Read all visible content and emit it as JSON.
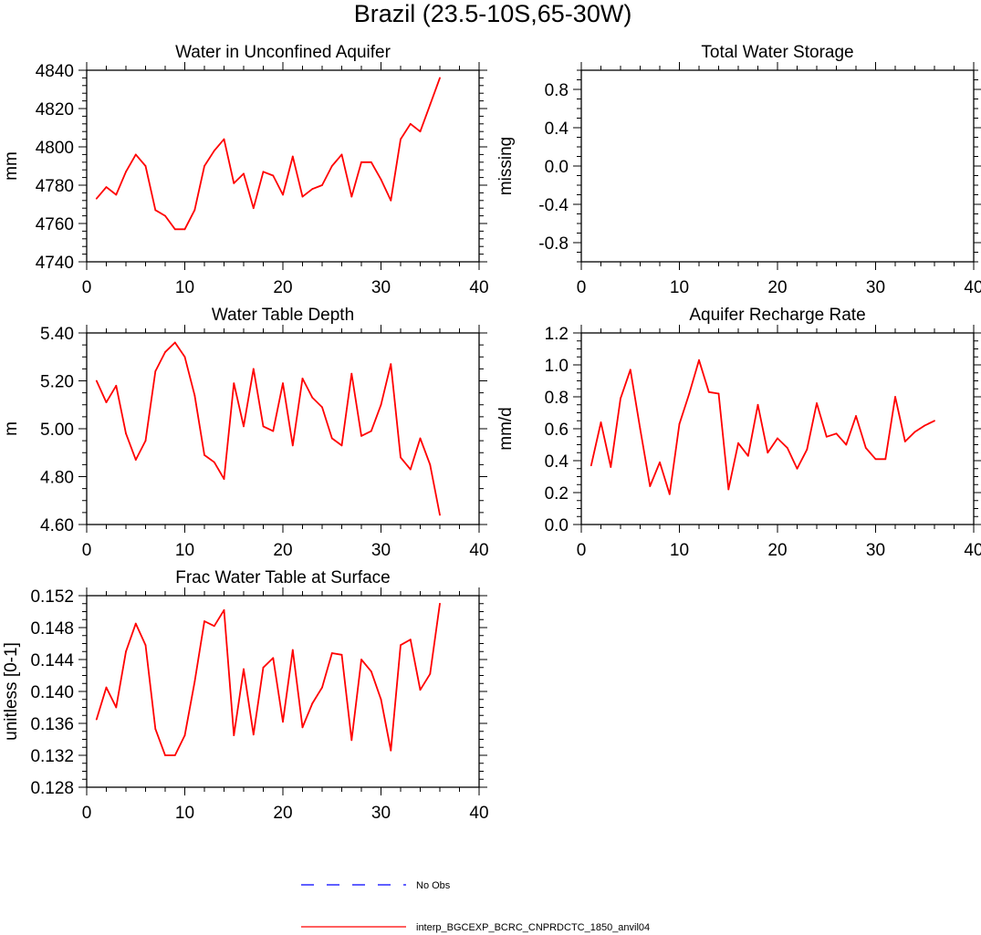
{
  "title": "Brazil (23.5-10S,65-30W)",
  "colors": {
    "model_line": "#ff0000",
    "obs_line": "#0000ff",
    "axis": "#000000"
  },
  "legend": {
    "obs_label": "No Obs",
    "model_label": "interp_BGCEXP_BCRC_CNPRDCTC_1850_anvil04"
  },
  "chart_data": [
    {
      "type": "line",
      "title": "Water in Unconfined Aquifer",
      "ylabel": "mm",
      "xlim": [
        0,
        40
      ],
      "ylim": [
        4740,
        4840
      ],
      "xticks": [
        0,
        10,
        20,
        30,
        40
      ],
      "yticks": [
        4740,
        4760,
        4780,
        4800,
        4820,
        4840
      ],
      "ytick_labels": [
        "4740",
        "4760",
        "4780",
        "4800",
        "4820",
        "4840"
      ],
      "yminor": 5,
      "series": [
        {
          "name": "interp_BGCEXP_BCRC_CNPRDCTC_1850_anvil04",
          "x": [
            1,
            2,
            3,
            4,
            5,
            6,
            7,
            8,
            9,
            10,
            11,
            12,
            13,
            14,
            15,
            16,
            17,
            18,
            19,
            20,
            21,
            22,
            23,
            24,
            25,
            26,
            27,
            28,
            29,
            30,
            31,
            32,
            33,
            34,
            35,
            36
          ],
          "values": [
            4773,
            4779,
            4775,
            4787,
            4796,
            4790,
            4767,
            4764,
            4757,
            4757,
            4767,
            4790,
            4798,
            4804,
            4781,
            4786,
            4768,
            4787,
            4785,
            4775,
            4795,
            4774,
            4778,
            4780,
            4790,
            4796,
            4774,
            4792,
            4792,
            4783,
            4772,
            4804,
            4812,
            4808,
            4822,
            4836
          ]
        }
      ]
    },
    {
      "type": "line",
      "title": "Total Water Storage",
      "ylabel": "missing",
      "xlim": [
        0,
        40
      ],
      "ylim": [
        -1.0,
        1.0
      ],
      "xticks": [
        0,
        10,
        20,
        30,
        40
      ],
      "yticks": [
        -0.8,
        -0.4,
        0.0,
        0.4,
        0.8
      ],
      "ytick_labels": [
        "-0.8",
        "-0.4",
        "0.0",
        "0.4",
        "0.8"
      ],
      "yminor": 4,
      "series": []
    },
    {
      "type": "line",
      "title": "Water Table Depth",
      "ylabel": "m",
      "xlim": [
        0,
        40
      ],
      "ylim": [
        4.6,
        5.4
      ],
      "xticks": [
        0,
        10,
        20,
        30,
        40
      ],
      "yticks": [
        4.6,
        4.8,
        5.0,
        5.2,
        5.4
      ],
      "ytick_labels": [
        "4.60",
        "4.80",
        "5.00",
        "5.20",
        "5.40"
      ],
      "yminor": 4,
      "series": [
        {
          "name": "interp_BGCEXP_BCRC_CNPRDCTC_1850_anvil04",
          "x": [
            1,
            2,
            3,
            4,
            5,
            6,
            7,
            8,
            9,
            10,
            11,
            12,
            13,
            14,
            15,
            16,
            17,
            18,
            19,
            20,
            21,
            22,
            23,
            24,
            25,
            26,
            27,
            28,
            29,
            30,
            31,
            32,
            33,
            34,
            35,
            36
          ],
          "values": [
            5.2,
            5.11,
            5.18,
            4.98,
            4.87,
            4.95,
            5.24,
            5.32,
            5.36,
            5.3,
            5.14,
            4.89,
            4.86,
            4.79,
            5.19,
            5.01,
            5.25,
            5.01,
            4.99,
            5.19,
            4.93,
            5.21,
            5.13,
            5.09,
            4.96,
            4.93,
            5.23,
            4.97,
            4.99,
            5.1,
            5.27,
            4.88,
            4.83,
            4.96,
            4.85,
            4.64
          ]
        }
      ]
    },
    {
      "type": "line",
      "title": "Aquifer Recharge Rate",
      "ylabel": "mm/d",
      "xlim": [
        0,
        40
      ],
      "ylim": [
        0.0,
        1.2
      ],
      "xticks": [
        0,
        10,
        20,
        30,
        40
      ],
      "yticks": [
        0.0,
        0.2,
        0.4,
        0.6,
        0.8,
        1.0,
        1.2
      ],
      "ytick_labels": [
        "0.0",
        "0.2",
        "0.4",
        "0.6",
        "0.8",
        "1.0",
        "1.2"
      ],
      "yminor": 4,
      "series": [
        {
          "name": "interp_BGCEXP_BCRC_CNPRDCTC_1850_anvil04",
          "x": [
            1,
            2,
            3,
            4,
            5,
            6,
            7,
            8,
            9,
            10,
            11,
            12,
            13,
            14,
            15,
            16,
            17,
            18,
            19,
            20,
            21,
            22,
            23,
            24,
            25,
            26,
            27,
            28,
            29,
            30,
            31,
            32,
            33,
            34,
            35,
            36
          ],
          "values": [
            0.37,
            0.64,
            0.36,
            0.79,
            0.97,
            0.6,
            0.24,
            0.39,
            0.19,
            0.63,
            0.82,
            1.03,
            0.83,
            0.82,
            0.22,
            0.51,
            0.43,
            0.75,
            0.45,
            0.54,
            0.48,
            0.35,
            0.47,
            0.76,
            0.55,
            0.57,
            0.5,
            0.68,
            0.48,
            0.41,
            0.41,
            0.8,
            0.52,
            0.58,
            0.62,
            0.65
          ]
        }
      ]
    },
    {
      "type": "line",
      "title": "Frac Water Table at Surface",
      "ylabel": "unitless [0-1]",
      "xlim": [
        0,
        40
      ],
      "ylim": [
        0.128,
        0.152
      ],
      "xticks": [
        0,
        10,
        20,
        30,
        40
      ],
      "yticks": [
        0.128,
        0.132,
        0.136,
        0.14,
        0.144,
        0.148,
        0.152
      ],
      "ytick_labels": [
        "0.128",
        "0.132",
        "0.136",
        "0.140",
        "0.144",
        "0.148",
        "0.152"
      ],
      "yminor": 4,
      "series": [
        {
          "name": "interp_BGCEXP_BCRC_CNPRDCTC_1850_anvil04",
          "x": [
            1,
            2,
            3,
            4,
            5,
            6,
            7,
            8,
            9,
            10,
            11,
            12,
            13,
            14,
            15,
            16,
            17,
            18,
            19,
            20,
            21,
            22,
            23,
            24,
            25,
            26,
            27,
            28,
            29,
            30,
            31,
            32,
            33,
            34,
            35,
            36
          ],
          "values": [
            0.1365,
            0.1405,
            0.138,
            0.145,
            0.1485,
            0.1458,
            0.1353,
            0.132,
            0.132,
            0.1345,
            0.1412,
            0.1488,
            0.1482,
            0.1502,
            0.1345,
            0.1428,
            0.1346,
            0.143,
            0.1442,
            0.1362,
            0.1452,
            0.1355,
            0.1385,
            0.1405,
            0.1448,
            0.1446,
            0.1339,
            0.144,
            0.1425,
            0.139,
            0.1326,
            0.1458,
            0.1465,
            0.1402,
            0.1422,
            0.151
          ]
        }
      ]
    }
  ]
}
